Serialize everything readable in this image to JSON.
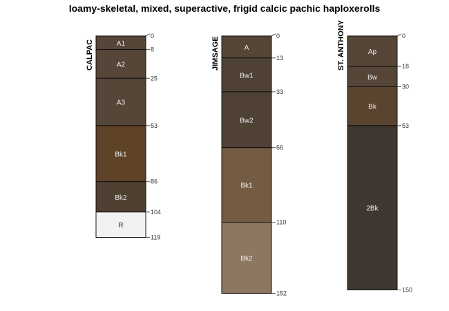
{
  "title": "loamy-skeletal, mixed, superactive, frigid calcic pachic haploxerolls",
  "profiles": [
    {
      "name": "CALPAC",
      "horizons": [
        {
          "name": "A1",
          "top": 0,
          "bottom": 8,
          "color": "#554638"
        },
        {
          "name": "A2",
          "top": 8,
          "bottom": 25,
          "color": "#554638"
        },
        {
          "name": "A3",
          "top": 25,
          "bottom": 53,
          "color": "#554638"
        },
        {
          "name": "Bk1",
          "top": 53,
          "bottom": 86,
          "color": "#5e4327"
        },
        {
          "name": "Bk2",
          "top": 86,
          "bottom": 104,
          "color": "#504031"
        },
        {
          "name": "R",
          "top": 104,
          "bottom": 119,
          "color": "#f2f2f2"
        }
      ]
    },
    {
      "name": "JIMSAGE",
      "horizons": [
        {
          "name": "A",
          "top": 0,
          "bottom": 13,
          "color": "#554638"
        },
        {
          "name": "Bw1",
          "top": 13,
          "bottom": 33,
          "color": "#504135"
        },
        {
          "name": "Bw2",
          "top": 33,
          "bottom": 66,
          "color": "#4f4134"
        },
        {
          "name": "Bk1",
          "top": 66,
          "bottom": 110,
          "color": "#735c43"
        },
        {
          "name": "Bk2",
          "top": 110,
          "bottom": 152,
          "color": "#8c7760"
        }
      ]
    },
    {
      "name": "ST. ANTHONY",
      "horizons": [
        {
          "name": "Ap",
          "top": 0,
          "bottom": 18,
          "color": "#554637"
        },
        {
          "name": "Bw",
          "top": 18,
          "bottom": 30,
          "color": "#554536"
        },
        {
          "name": "Bk",
          "top": 30,
          "bottom": 53,
          "color": "#5a4430"
        },
        {
          "name": "2Bk",
          "top": 53,
          "bottom": 150,
          "color": "#3f3830"
        }
      ]
    }
  ]
}
